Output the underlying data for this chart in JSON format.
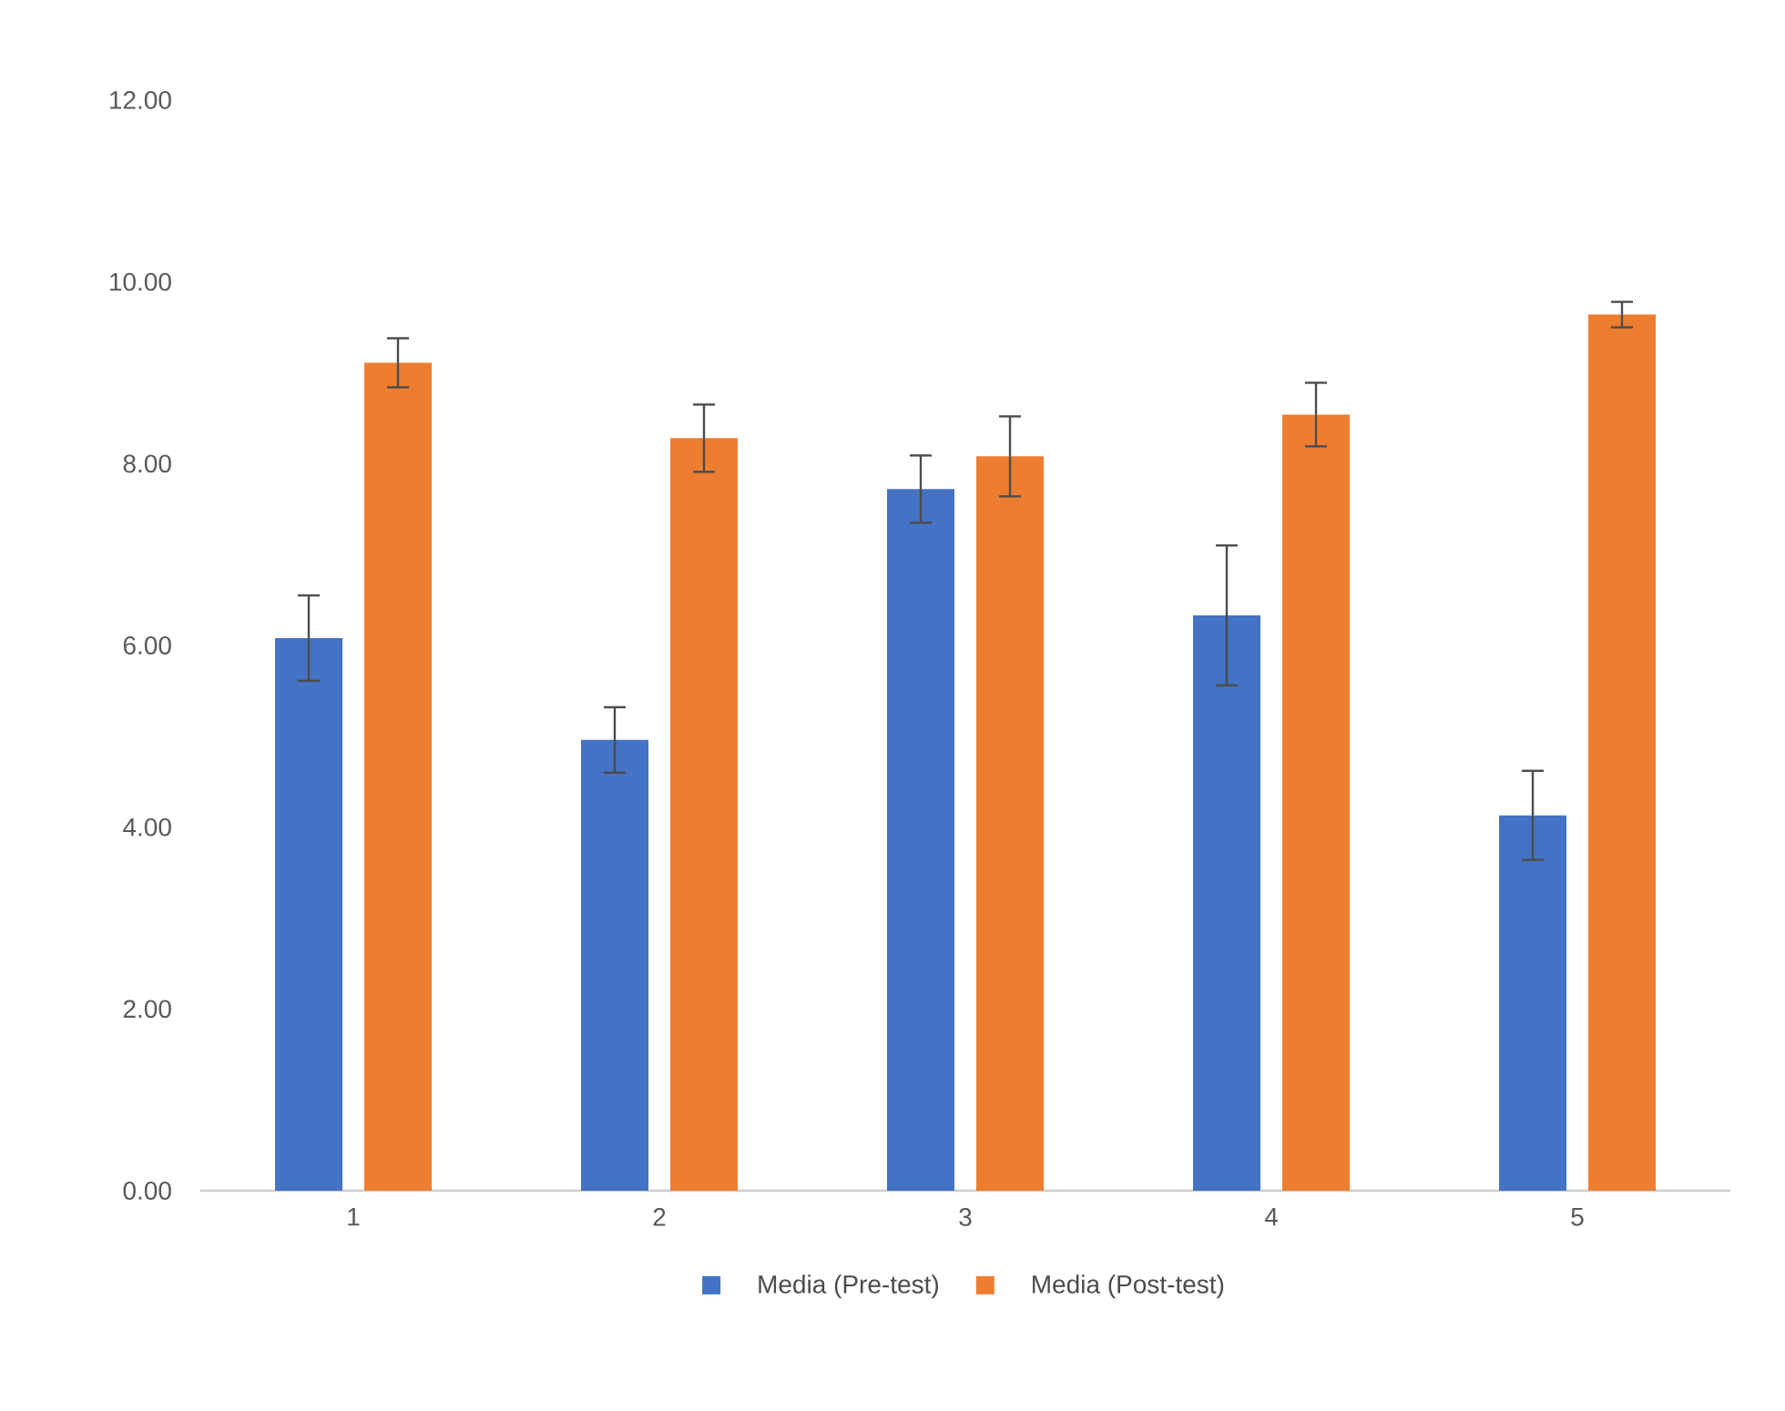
{
  "chart_data": {
    "type": "bar",
    "categories": [
      "1",
      "2",
      "3",
      "4",
      "5"
    ],
    "series": [
      {
        "name": "Media (Pre-test)",
        "color": "#4472c4",
        "values": [
          6.08,
          4.96,
          7.72,
          6.33,
          4.13
        ],
        "errors": [
          0.47,
          0.36,
          0.37,
          0.77,
          0.49
        ]
      },
      {
        "name": "Media (Post-test)",
        "color": "#ed7d31",
        "values": [
          9.11,
          8.28,
          8.08,
          8.54,
          9.64
        ],
        "errors": [
          0.27,
          0.37,
          0.44,
          0.35,
          0.14
        ]
      }
    ],
    "ylim": [
      0,
      12
    ],
    "yticks": [
      {
        "value": 0,
        "label": "0.00"
      },
      {
        "value": 2,
        "label": "2.00"
      },
      {
        "value": 4,
        "label": "4.00"
      },
      {
        "value": 6,
        "label": "6.00"
      },
      {
        "value": 8,
        "label": "8.00"
      },
      {
        "value": 10,
        "label": "10.00"
      },
      {
        "value": 12,
        "label": "12.00"
      }
    ],
    "grid": false,
    "legend": "bottom"
  }
}
